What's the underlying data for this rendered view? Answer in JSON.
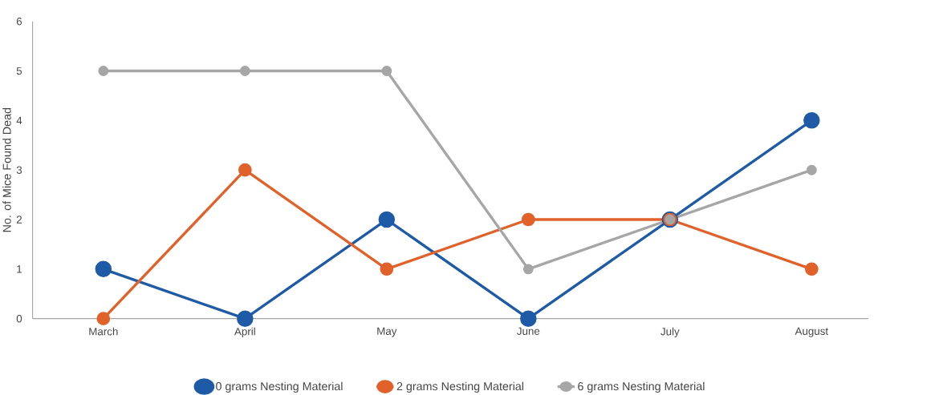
{
  "chart_data": {
    "type": "line",
    "ylabel": "No. of Mice Found Dead",
    "categories": [
      "March",
      "April",
      "May",
      "June",
      "July",
      "August"
    ],
    "series": [
      {
        "name": "0 grams Nesting Material",
        "color": "#1f5aa6",
        "values": [
          1,
          0,
          2,
          0,
          2,
          4
        ]
      },
      {
        "name": "2 grams Nesting Material",
        "color": "#e0622a",
        "values": [
          0,
          3,
          1,
          2,
          2,
          1
        ]
      },
      {
        "name": "6 grams Nesting Material",
        "color": "#a6a6a6",
        "values": [
          5,
          5,
          5,
          1,
          2,
          3
        ]
      }
    ],
    "ylim": [
      0,
      6
    ],
    "yticks": [
      0,
      1,
      2,
      3,
      4,
      5,
      6
    ],
    "legend": "bottom",
    "marker": "circle"
  }
}
